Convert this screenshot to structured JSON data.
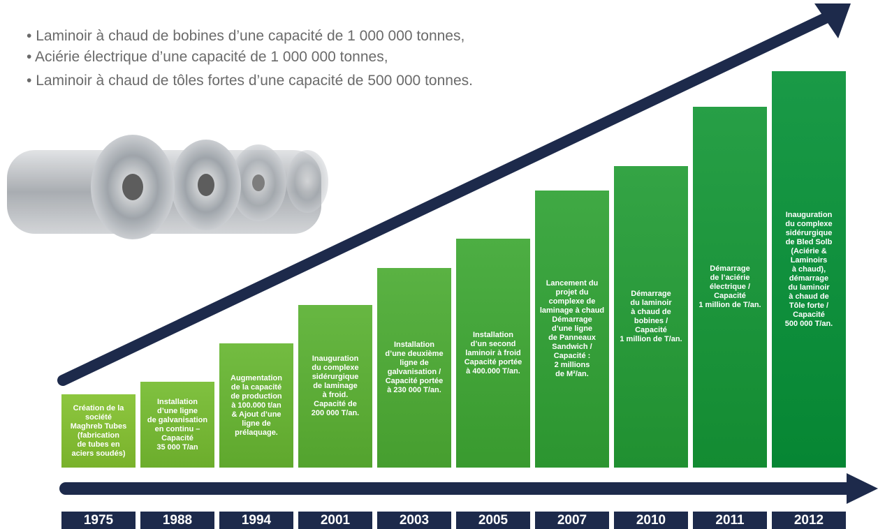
{
  "bullets": [
    "Laminoir à chaud de bobines d’une capacité de 1 000 000 tonnes,",
    "Aciérie électrique d’une capacité de 1 000 000 tonnes,",
    "Laminoir à chaud de tôles fortes d’une capacité de 500 000 tonnes."
  ],
  "milestones": [
    {
      "year": "1975",
      "lines": [
        "Création de la",
        "société",
        "Maghreb Tubes",
        "(fabrication",
        "de tubes en",
        "aciers soudés)"
      ]
    },
    {
      "year": "1988",
      "lines": [
        "Installation",
        "d’une ligne",
        "de galvanisation",
        "en continu –",
        "Capacité",
        "35 000 T/an"
      ]
    },
    {
      "year": "1994",
      "lines": [
        "Augmentation",
        "de la capacité",
        "de production",
        "à 100.000 t/an",
        "& Ajout d’une",
        "ligne de",
        "prélaquage."
      ]
    },
    {
      "year": "2001",
      "lines": [
        "Inauguration",
        "du complexe",
        "sidérurgique",
        "de laminage",
        "à froid.",
        "Capacité de",
        "200 000 T/an."
      ]
    },
    {
      "year": "2003",
      "lines": [
        "Installation",
        "d’une deuxième",
        "ligne de",
        "galvanisation /",
        "Capacité portée",
        "à 230 000 T/an."
      ]
    },
    {
      "year": "2005",
      "lines": [
        "Installation",
        "d’un second",
        "laminoir à froid",
        "Capacité portée",
        "à 400.000 T/an."
      ]
    },
    {
      "year": "2007",
      "lines": [
        "Lancement du",
        "projet du",
        "complexe de",
        "laminage à chaud",
        "Démarrage",
        "d’une ligne",
        "de Panneaux",
        "Sandwich /",
        "Capacité :",
        "2 millions",
        "de M²/an."
      ]
    },
    {
      "year": "2010",
      "lines": [
        "Démarrage",
        "du laminoir",
        "à chaud de",
        "bobines /",
        "Capacité",
        "1 million de T/an."
      ]
    },
    {
      "year": "2011",
      "lines": [
        "Démarrage",
        "de l’aciérie",
        "électrique /",
        "Capacité",
        "1 million de T/an."
      ]
    },
    {
      "year": "2012",
      "lines": [
        "Inauguration",
        "du complexe",
        "sidérurgique",
        "de Bled Solb",
        "(Aciérie &",
        "Laminoirs",
        "à chaud),",
        "démarrage",
        "du laminoir",
        "à chaud de",
        "Tôle forte /",
        "Capacité",
        "500 000 T/an."
      ]
    }
  ]
}
